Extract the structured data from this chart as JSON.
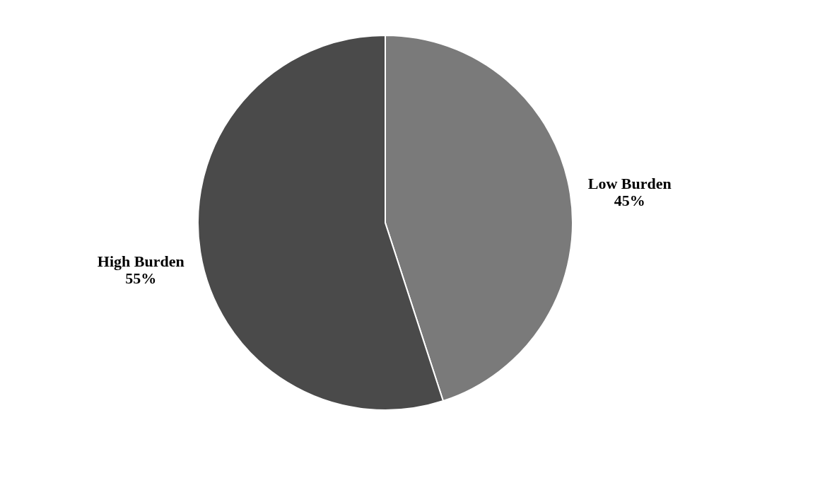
{
  "chart_data": {
    "type": "pie",
    "categories": [
      "Low Burden",
      "High Burden"
    ],
    "values": [
      45,
      55
    ],
    "colors": [
      "#7a7a7a",
      "#4a4a4a"
    ],
    "value_labels": [
      "45%",
      "55%"
    ],
    "legend": false
  }
}
